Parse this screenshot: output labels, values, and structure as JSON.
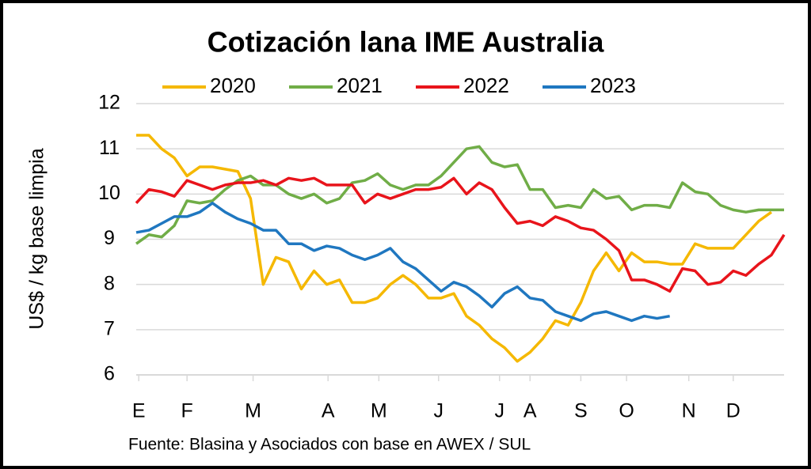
{
  "chart_data": {
    "type": "line",
    "title": "Cotización lana IME Australia",
    "y_label": "US$ / kg base limpia",
    "source": "Fuente: Blasina y Asociados con base en AWEX / SUL",
    "x": [
      1,
      2,
      3,
      4,
      5,
      6,
      7,
      8,
      9,
      10,
      11,
      12,
      13,
      14,
      15,
      16,
      17,
      18,
      19,
      20,
      21,
      22,
      23,
      24,
      25,
      26,
      27,
      28,
      29,
      30,
      31,
      32,
      33,
      34,
      35,
      36,
      37,
      38,
      39,
      40,
      41,
      42,
      43,
      44,
      45,
      46,
      47,
      48,
      49,
      50,
      51,
      52
    ],
    "xlim": [
      1,
      52
    ],
    "xticks": [
      {
        "value": 1.2,
        "label": "E"
      },
      {
        "value": 5,
        "label": "F"
      },
      {
        "value": 10.2,
        "label": "M"
      },
      {
        "value": 16.1,
        "label": "A"
      },
      {
        "value": 20.1,
        "label": "M"
      },
      {
        "value": 24.8,
        "label": "J"
      },
      {
        "value": 29.6,
        "label": "J"
      },
      {
        "value": 32,
        "label": "A"
      },
      {
        "value": 36,
        "label": "S"
      },
      {
        "value": 39.6,
        "label": "O"
      },
      {
        "value": 44.5,
        "label": "N"
      },
      {
        "value": 48,
        "label": "D"
      }
    ],
    "ylim": [
      6,
      12
    ],
    "yticks": [
      6,
      7,
      8,
      9,
      10,
      11,
      12
    ],
    "grid": true,
    "legend": "top",
    "series": [
      {
        "name": "2020",
        "color": "#f5b800",
        "values": [
          11.3,
          11.3,
          11.0,
          10.8,
          10.4,
          10.6,
          10.6,
          10.55,
          10.5,
          9.9,
          8.0,
          8.6,
          8.5,
          7.9,
          8.3,
          8.0,
          8.1,
          7.6,
          7.6,
          7.7,
          8.0,
          8.2,
          8.0,
          7.7,
          7.7,
          7.8,
          7.3,
          7.1,
          6.8,
          6.6,
          6.3,
          6.5,
          6.8,
          7.2,
          7.1,
          7.6,
          8.3,
          8.7,
          8.3,
          8.7,
          8.5,
          8.5,
          8.45,
          8.45,
          8.9,
          8.8,
          8.8,
          8.8,
          9.1,
          9.4,
          9.6,
          null
        ]
      },
      {
        "name": "2021",
        "color": "#70ad47",
        "values": [
          8.9,
          9.1,
          9.05,
          9.3,
          9.85,
          9.8,
          9.85,
          10.1,
          10.3,
          10.4,
          10.2,
          10.2,
          10.0,
          9.9,
          10.0,
          9.8,
          9.9,
          10.25,
          10.3,
          10.45,
          10.2,
          10.1,
          10.2,
          10.2,
          10.4,
          10.7,
          11.0,
          11.05,
          10.7,
          10.6,
          10.65,
          10.1,
          10.1,
          9.7,
          9.75,
          9.7,
          10.1,
          9.9,
          9.95,
          9.65,
          9.75,
          9.75,
          9.7,
          10.25,
          10.05,
          10.0,
          9.75,
          9.65,
          9.6,
          9.65,
          9.65,
          9.65
        ]
      },
      {
        "name": "2022",
        "color": "#e8141b",
        "values": [
          9.8,
          10.1,
          10.05,
          9.95,
          10.3,
          10.2,
          10.1,
          10.2,
          10.25,
          10.25,
          10.3,
          10.2,
          10.35,
          10.3,
          10.35,
          10.2,
          10.2,
          10.2,
          9.8,
          10.0,
          9.9,
          10.0,
          10.1,
          10.1,
          10.15,
          10.35,
          10.0,
          10.25,
          10.1,
          9.7,
          9.35,
          9.4,
          9.3,
          9.5,
          9.4,
          9.25,
          9.2,
          9.0,
          8.75,
          8.1,
          8.1,
          8.0,
          7.85,
          8.35,
          8.3,
          8.0,
          8.05,
          8.3,
          8.2,
          8.45,
          8.65,
          9.1
        ]
      },
      {
        "name": "2023",
        "color": "#1f77c0",
        "values": [
          9.15,
          9.2,
          9.35,
          9.5,
          9.5,
          9.6,
          9.8,
          9.6,
          9.45,
          9.35,
          9.2,
          9.2,
          8.9,
          8.9,
          8.75,
          8.85,
          8.8,
          8.65,
          8.55,
          8.65,
          8.8,
          8.5,
          8.35,
          8.1,
          7.85,
          8.05,
          7.95,
          7.75,
          7.5,
          7.8,
          7.95,
          7.7,
          7.65,
          7.4,
          7.3,
          7.2,
          7.35,
          7.4,
          7.3,
          7.2,
          7.3,
          7.25,
          7.3,
          null,
          null,
          null,
          null,
          null,
          null,
          null,
          null,
          null
        ]
      }
    ]
  }
}
